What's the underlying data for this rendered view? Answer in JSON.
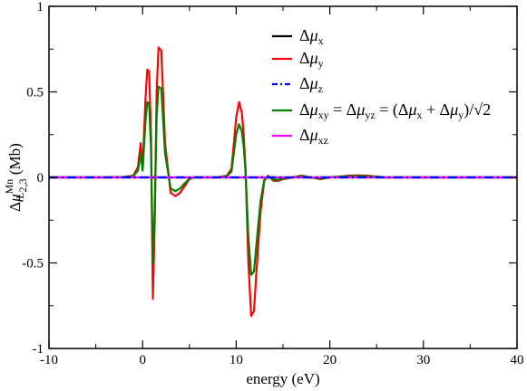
{
  "chart_data": {
    "type": "line",
    "xlabel": "energy (eV)",
    "ylabel": {
      "main": "Δμ",
      "superscript": "Mn",
      "subscript": "L",
      "subscript2": "2,3",
      "unit": " (Mb)"
    },
    "xlim": [
      -10,
      40
    ],
    "ylim": [
      -1,
      1
    ],
    "x_ticks": [
      -10,
      0,
      10,
      20,
      30,
      40
    ],
    "y_ticks": [
      -1,
      -0.5,
      0,
      0.5,
      1
    ],
    "x_tick_labels": [
      "-10",
      "0",
      "10",
      "20",
      "30",
      "40"
    ],
    "y_tick_labels": [
      "-1",
      "-0.5",
      "0",
      "0.5",
      "1"
    ],
    "grid": false,
    "legend_placement": "top-right",
    "legend": [
      {
        "parts": [
          {
            "t": "Δ"
          },
          {
            "t": "μ",
            "i": true
          },
          {
            "t": "x",
            "sub": true
          }
        ]
      },
      {
        "parts": [
          {
            "t": "Δ"
          },
          {
            "t": "μ",
            "i": true
          },
          {
            "t": "y",
            "sub": true
          }
        ]
      },
      {
        "parts": [
          {
            "t": "Δ"
          },
          {
            "t": "μ",
            "i": true
          },
          {
            "t": "z",
            "sub": true
          }
        ]
      },
      {
        "parts": [
          {
            "t": "Δ"
          },
          {
            "t": "μ",
            "i": true
          },
          {
            "t": "xy",
            "sub": true
          },
          {
            "t": " = Δ"
          },
          {
            "t": "μ",
            "i": true
          },
          {
            "t": "yz",
            "sub": true
          },
          {
            "t": " = (Δ"
          },
          {
            "t": "μ",
            "i": true
          },
          {
            "t": "x",
            "sub": true
          },
          {
            "t": " + Δ"
          },
          {
            "t": "μ",
            "i": true
          },
          {
            "t": "y",
            "sub": true
          },
          {
            "t": ")/√2"
          }
        ]
      },
      {
        "parts": [
          {
            "t": "Δ"
          },
          {
            "t": "μ",
            "i": true
          },
          {
            "t": "xz",
            "sub": true
          }
        ]
      }
    ],
    "series": [
      {
        "name": "Δμx",
        "color": "#000000",
        "dash": "solid",
        "x": [
          -10,
          40
        ],
        "y": [
          0,
          0
        ]
      },
      {
        "name": "Δμy",
        "color": "#ff0000",
        "dash": "solid",
        "x": [
          -10,
          -4,
          -2,
          -1,
          -0.5,
          -0.2,
          0,
          0.3,
          0.5,
          0.7,
          0.9,
          1.1,
          1.3,
          1.5,
          1.7,
          2.0,
          2.4,
          3.0,
          3.5,
          4.0,
          4.5,
          5.0,
          5.5,
          6.0,
          7.0,
          8.0,
          9.0,
          9.5,
          10.0,
          10.3,
          10.6,
          10.8,
          11.0,
          11.3,
          11.6,
          11.9,
          12.2,
          12.6,
          13.0,
          13.4,
          14.0,
          14.5,
          15.0,
          16.0,
          17.0,
          18.0,
          19.0,
          20.0,
          21.0,
          22.0,
          23.0,
          24.0,
          25.0,
          26.0,
          28.0,
          30.0,
          35.0,
          40.0
        ],
        "y": [
          0,
          0,
          0.003,
          0.01,
          0.06,
          0.2,
          0.05,
          0.45,
          0.63,
          0.62,
          0.25,
          -0.71,
          -0.25,
          0.5,
          0.76,
          0.74,
          0.2,
          -0.09,
          -0.11,
          -0.09,
          -0.05,
          -0.01,
          0.0,
          0.0,
          0.0,
          0.0,
          0.01,
          0.05,
          0.35,
          0.44,
          0.38,
          0.25,
          0.05,
          -0.5,
          -0.81,
          -0.78,
          -0.52,
          -0.2,
          -0.02,
          0.01,
          -0.02,
          -0.02,
          -0.01,
          0.0,
          0.01,
          0.0,
          -0.01,
          0.0,
          0.005,
          0.01,
          0.012,
          0.01,
          0.005,
          0.0,
          0.0,
          0.0,
          0.0,
          0.0
        ]
      },
      {
        "name": "Δμz",
        "color": "#0000ff",
        "dash": "dashdot",
        "x": [
          -10,
          40
        ],
        "y": [
          0,
          0
        ]
      },
      {
        "name": "Δμxy = Δμyz = (Δμx + Δμy)/√2",
        "color": "#008000",
        "dash": "solid",
        "x": [
          -10,
          -4,
          -2,
          -1,
          -0.5,
          -0.2,
          0,
          0.3,
          0.5,
          0.7,
          0.9,
          1.1,
          1.3,
          1.5,
          1.7,
          2.0,
          2.4,
          3.0,
          3.5,
          4.0,
          4.5,
          5.0,
          5.5,
          6.0,
          7.0,
          8.0,
          9.0,
          9.5,
          10.0,
          10.3,
          10.6,
          10.8,
          11.0,
          11.3,
          11.6,
          11.9,
          12.2,
          12.6,
          13.0,
          13.4,
          14.0,
          14.5,
          15.0,
          16.0,
          17.0,
          18.0,
          19.0,
          20.0,
          21.0,
          22.0,
          23.0,
          24.0,
          25.0,
          26.0,
          28.0,
          30.0,
          35.0,
          40.0
        ],
        "y": [
          0,
          0,
          0.002,
          0.007,
          0.04,
          0.14,
          0.04,
          0.32,
          0.44,
          0.43,
          0.17,
          -0.5,
          -0.18,
          0.35,
          0.53,
          0.52,
          0.14,
          -0.065,
          -0.08,
          -0.065,
          -0.035,
          -0.007,
          0.0,
          0.0,
          0.0,
          0.0,
          0.007,
          0.035,
          0.25,
          0.31,
          0.27,
          0.18,
          0.035,
          -0.35,
          -0.57,
          -0.55,
          -0.37,
          -0.14,
          -0.014,
          0.007,
          -0.014,
          -0.014,
          -0.007,
          0.0,
          0.007,
          0.0,
          -0.007,
          0.0,
          0.004,
          0.007,
          0.008,
          0.007,
          0.004,
          0.0,
          0.0,
          0.0,
          0.0,
          0.0
        ]
      },
      {
        "name": "Δμxz",
        "color": "#ff00ff",
        "dash": "solid",
        "x": [
          -10,
          40
        ],
        "y": [
          0,
          0
        ]
      }
    ]
  }
}
